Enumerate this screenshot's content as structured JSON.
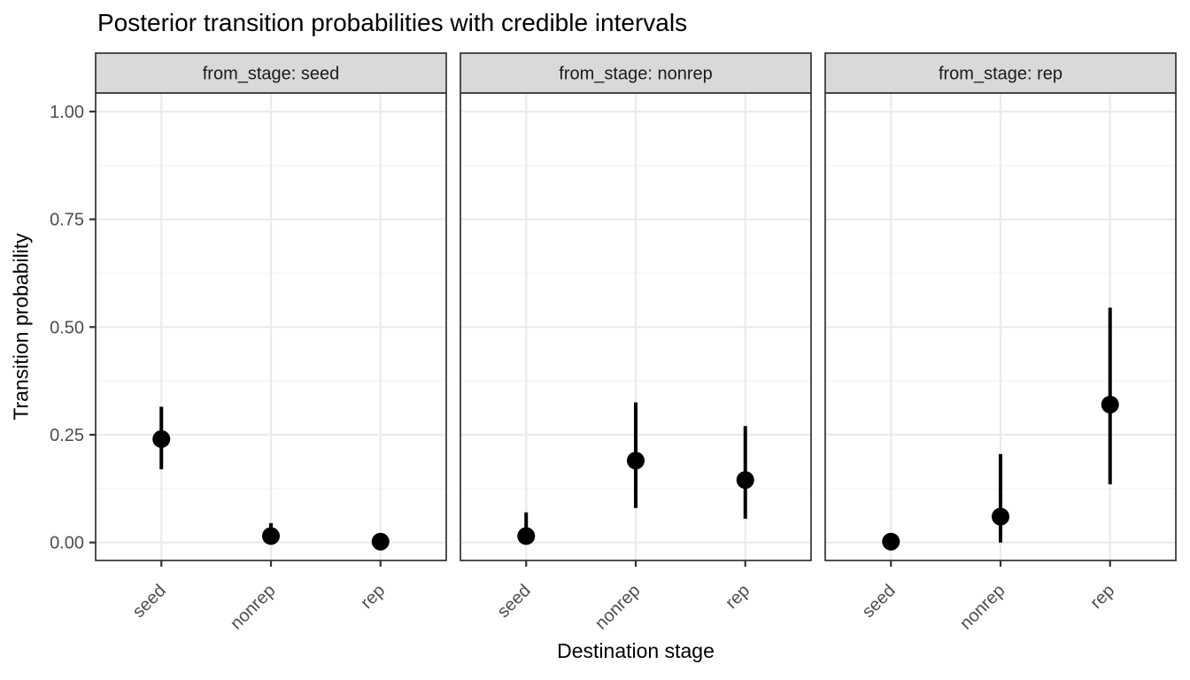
{
  "chart_data": {
    "type": "scatter",
    "title": "Posterior transition probabilities with credible intervals",
    "xlabel": "Destination stage",
    "ylabel": "Transition probability",
    "x_categories": [
      "seed",
      "nonrep",
      "rep"
    ],
    "y_ticks": [
      0.0,
      0.25,
      0.5,
      0.75,
      1.0
    ],
    "y_tick_labels": [
      "0.00",
      "0.25",
      "0.50",
      "0.75",
      "1.00"
    ],
    "y_minor": [
      0.125,
      0.375,
      0.625,
      0.875
    ],
    "ylim": [
      0,
      1
    ],
    "grid": true,
    "legend": "none",
    "facets": [
      {
        "strip_label": "from_stage: seed",
        "from_stage": "seed",
        "points": [
          {
            "dest": "seed",
            "mean": 0.24,
            "lower": 0.17,
            "upper": 0.315
          },
          {
            "dest": "nonrep",
            "mean": 0.015,
            "lower": 0.0,
            "upper": 0.045
          },
          {
            "dest": "rep",
            "mean": 0.002,
            "lower": 0.0,
            "upper": 0.006
          }
        ]
      },
      {
        "strip_label": "from_stage: nonrep",
        "from_stage": "nonrep",
        "points": [
          {
            "dest": "seed",
            "mean": 0.015,
            "lower": 0.0,
            "upper": 0.07
          },
          {
            "dest": "nonrep",
            "mean": 0.19,
            "lower": 0.08,
            "upper": 0.325
          },
          {
            "dest": "rep",
            "mean": 0.145,
            "lower": 0.055,
            "upper": 0.27
          }
        ]
      },
      {
        "strip_label": "from_stage: rep",
        "from_stage": "rep",
        "points": [
          {
            "dest": "seed",
            "mean": 0.002,
            "lower": 0.0,
            "upper": 0.006
          },
          {
            "dest": "nonrep",
            "mean": 0.06,
            "lower": 0.0,
            "upper": 0.205
          },
          {
            "dest": "rep",
            "mean": 0.32,
            "lower": 0.135,
            "upper": 0.545
          }
        ]
      }
    ]
  },
  "colors": {
    "point": "#000000",
    "interval": "#000000",
    "grid_major": "#ebebeb",
    "grid_minor": "#f3f3f3",
    "panel_border": "#333333",
    "panel_fill": "#ffffff",
    "strip_fill": "#d9d9d9",
    "strip_border": "#333333",
    "strip_text": "#1a1a1a",
    "axis_tick": "#333333",
    "tick_label": "#4d4d4d",
    "title_text": "#000000"
  }
}
